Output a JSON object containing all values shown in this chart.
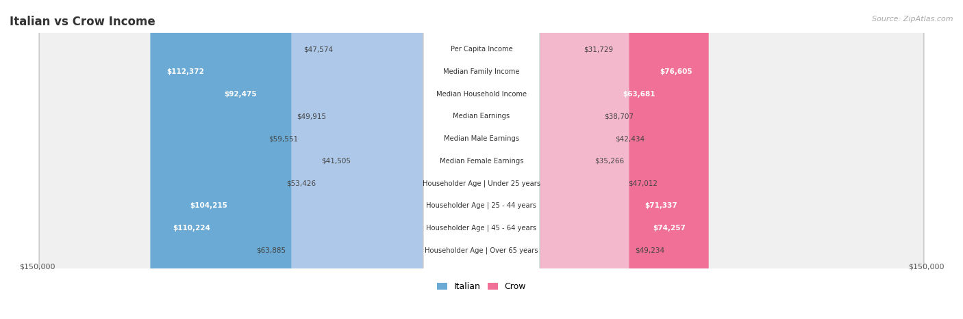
{
  "title": "Italian vs Crow Income",
  "source": "Source: ZipAtlas.com",
  "max_value": 150000,
  "italian_color_light": "#adc8e8",
  "italian_color_dark": "#6aaad4",
  "crow_color_light": "#f4b8cc",
  "crow_color_dark": "#f07098",
  "row_bg": "#f0f0f0",
  "row_bg_alt": "#e8e8e8",
  "categories": [
    "Per Capita Income",
    "Median Family Income",
    "Median Household Income",
    "Median Earnings",
    "Median Male Earnings",
    "Median Female Earnings",
    "Householder Age | Under 25 years",
    "Householder Age | 25 - 44 years",
    "Householder Age | 45 - 64 years",
    "Householder Age | Over 65 years"
  ],
  "italian_values": [
    47574,
    112372,
    92475,
    49915,
    59551,
    41505,
    53426,
    104215,
    110224,
    63885
  ],
  "crow_values": [
    31729,
    76605,
    63681,
    38707,
    42434,
    35266,
    47012,
    71337,
    74257,
    49234
  ],
  "italian_labels": [
    "$47,574",
    "$112,372",
    "$92,475",
    "$49,915",
    "$59,551",
    "$41,505",
    "$53,426",
    "$104,215",
    "$110,224",
    "$63,885"
  ],
  "crow_labels": [
    "$31,729",
    "$76,605",
    "$63,681",
    "$38,707",
    "$42,434",
    "$35,266",
    "$47,012",
    "$71,337",
    "$74,257",
    "$49,234"
  ],
  "legend_italian": "Italian",
  "legend_crow": "Crow",
  "x_axis_label_left": "$150,000",
  "x_axis_label_right": "$150,000",
  "italian_inside_threshold": 70000,
  "crow_inside_threshold": 55000
}
